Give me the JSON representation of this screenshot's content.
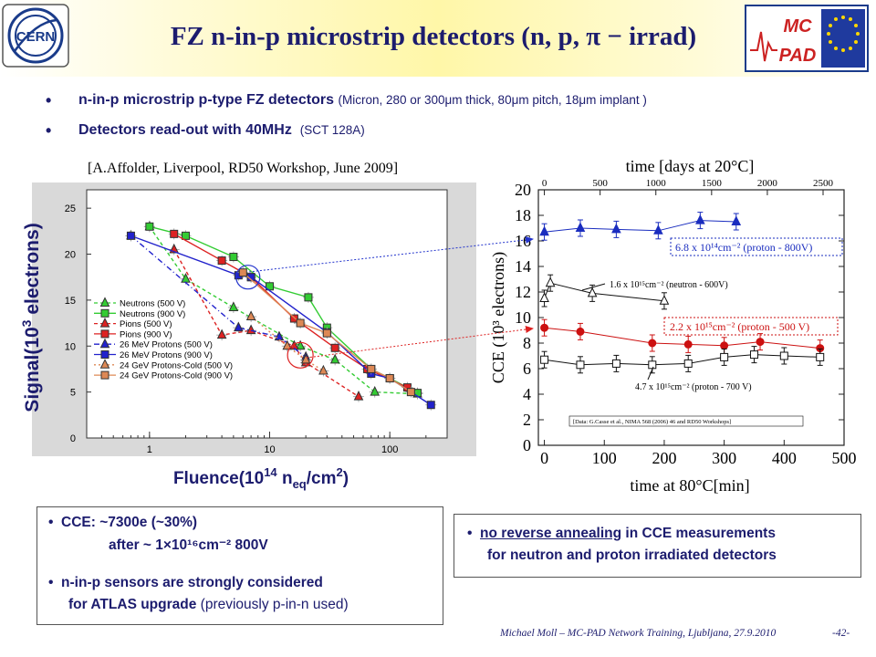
{
  "header": {
    "title": "FZ n-in-p microstrip detectors (n, p, π − irrad)",
    "left_logo": "CERN",
    "right_logo_top": "MC",
    "right_logo_bottom": "PAD"
  },
  "bullets": [
    {
      "main": "n-in-p microstrip p-type FZ detectors",
      "detail": "(Micron, 280 or 300μm thick, 80μm pitch, 18μm implant )"
    },
    {
      "main": "Detectors read-out with 40MHz",
      "detail": "(SCT 128A)"
    }
  ],
  "reference": "[A.Affolder, Liverpool, RD50 Workshop, June 2009]",
  "chart_data": [
    {
      "type": "line",
      "xlabel": "Fluence(10¹⁴ n_eq/cm²)",
      "ylabel": "Signal(10³ electrons)",
      "x_scale": "log",
      "xlim": [
        0.3,
        300
      ],
      "ylim": [
        0,
        27
      ],
      "x_ticks": [
        "1",
        "10",
        "100"
      ],
      "y_ticks": [
        "0",
        "5",
        "10",
        "15",
        "20",
        "25"
      ],
      "legend_position": "lower-left",
      "series": [
        {
          "name": "Neutrons (500 V)",
          "color": "#33cc33",
          "marker": "triangle",
          "dash": "4,3",
          "x": [
            1.0,
            2.0,
            5.0,
            18,
            35,
            75,
            170
          ],
          "y": [
            23.0,
            17.3,
            14.2,
            10.0,
            8.5,
            5.0,
            4.8
          ]
        },
        {
          "name": "Neutrons (900 V)",
          "color": "#33cc33",
          "marker": "square",
          "dash": "",
          "x": [
            1.0,
            2.0,
            5.0,
            10,
            21,
            30,
            70,
            100,
            170
          ],
          "y": [
            23.0,
            22.0,
            19.7,
            16.5,
            15.3,
            12.0,
            7.5,
            6.5,
            4.9
          ]
        },
        {
          "name": "Pions (500 V)",
          "color": "#dd2222",
          "marker": "triangle",
          "dash": "4,3",
          "x": [
            1.6,
            4.0,
            7.0,
            16,
            20,
            55
          ],
          "y": [
            20.5,
            11.2,
            11.7,
            10.0,
            8.2,
            4.5
          ]
        },
        {
          "name": "Pions (900 V)",
          "color": "#dd2222",
          "marker": "square",
          "dash": "",
          "x": [
            1.6,
            4.0,
            7.0,
            16,
            35,
            65,
            140
          ],
          "y": [
            22.2,
            19.3,
            17.5,
            13.0,
            9.8,
            7.5,
            5.5
          ]
        },
        {
          "name": "26 MeV Protons (500 V)",
          "color": "#2222cc",
          "marker": "triangle",
          "dash": "6,3,1,3",
          "x": [
            0.7,
            5.5,
            12,
            20
          ],
          "y": [
            22.0,
            12.0,
            11.0,
            8.8
          ]
        },
        {
          "name": "26 MeV Protons (900 V)",
          "color": "#2222cc",
          "marker": "square",
          "dash": "",
          "x": [
            0.7,
            5.5,
            7.0,
            30,
            70,
            100,
            220
          ],
          "y": [
            22.0,
            17.7,
            17.5,
            11.5,
            7.0,
            6.5,
            3.6
          ]
        },
        {
          "name": "24 GeV Protons-Cold (500 V)",
          "color": "#dd8855",
          "marker": "triangle",
          "dash": "2,3",
          "x": [
            7.0,
            14,
            20,
            28
          ],
          "y": [
            13.2,
            10.0,
            8.5,
            7.3
          ]
        },
        {
          "name": "24 GeV Protons-Cold (900 V)",
          "color": "#dd8855",
          "marker": "square",
          "dash": "",
          "x": [
            6.0,
            18,
            30,
            70,
            100,
            150
          ],
          "y": [
            18.0,
            12.5,
            11.4,
            7.5,
            6.5,
            5.0
          ]
        }
      ]
    },
    {
      "type": "line",
      "xlabel": "time at 80°C[min]",
      "ylabel": "CCE (10³ electrons)",
      "top_axis_label": "time [days at 20°C]",
      "xlim": [
        -10,
        500
      ],
      "ylim": [
        0,
        20
      ],
      "x_ticks": [
        "0",
        "100",
        "200",
        "300",
        "400",
        "500"
      ],
      "y_ticks": [
        "0",
        "2",
        "4",
        "6",
        "8",
        "10",
        "12",
        "14",
        "16",
        "18",
        "20"
      ],
      "top_ticks": [
        "0",
        "500",
        "1000",
        "1500",
        "2000",
        "2500"
      ],
      "annotations": [
        "6.8 x 10¹⁴cm⁻² (proton - 800V)",
        "1.6 x 10¹⁵cm⁻² (neutron - 600V)",
        "2.2 x 10¹⁵cm⁻² (proton - 500 V)",
        "4.7 x 10¹⁵cm⁻² (proton - 700 V)",
        "[Data: G.Casse et al., NIMA 568 (2006) 46 and RD50 Workshops]"
      ],
      "series": [
        {
          "name": "6.8 x 10¹⁴cm⁻² (proton - 800V)",
          "color": "#1a2dbf",
          "marker": "filled-triangle",
          "x": [
            0,
            60,
            120,
            190,
            260,
            320
          ],
          "y": [
            16.7,
            17.0,
            16.9,
            16.8,
            17.6,
            17.5
          ]
        },
        {
          "name": "1.6 x 10¹⁵cm⁻² (neutron - 600V)",
          "color": "#111111",
          "marker": "open-triangle",
          "x": [
            0,
            10,
            80,
            200
          ],
          "y": [
            11.5,
            12.7,
            11.9,
            11.3
          ]
        },
        {
          "name": "2.2 x 10¹⁵cm⁻² (proton - 500 V)",
          "color": "#cc1111",
          "marker": "filled-circle",
          "x": [
            0,
            60,
            180,
            240,
            300,
            360,
            460
          ],
          "y": [
            9.2,
            8.9,
            8.0,
            7.9,
            7.8,
            8.1,
            7.6
          ]
        },
        {
          "name": "4.7 x 10¹⁵cm⁻² (proton - 700 V)",
          "color": "#111111",
          "marker": "open-square",
          "x": [
            0,
            60,
            120,
            180,
            240,
            300,
            350,
            400,
            460
          ],
          "y": [
            6.7,
            6.3,
            6.4,
            6.3,
            6.4,
            6.9,
            7.1,
            7.0,
            6.9
          ]
        }
      ]
    }
  ],
  "box_left": {
    "line1": "CCE: ~7300e (~30%)",
    "line2": "after ~ 1×10¹⁶cm⁻² 800V",
    "line3": "n-in-p sensors are strongly considered",
    "line4_bold": "for ATLAS upgrade",
    "line4_normal": "(previously p-in-n used)"
  },
  "box_right": {
    "line1_underlined": "no reverse annealing",
    "line1_rest": " in CCE measurements",
    "line2": "for neutron and proton irradiated detectors"
  },
  "footer": {
    "text": "Michael Moll – MC-PAD Network Training, Ljubljana, 27.9.2010",
    "page": "-42-"
  },
  "colors": {
    "title": "#1c1c6e",
    "header_band": "#fff7a8"
  }
}
